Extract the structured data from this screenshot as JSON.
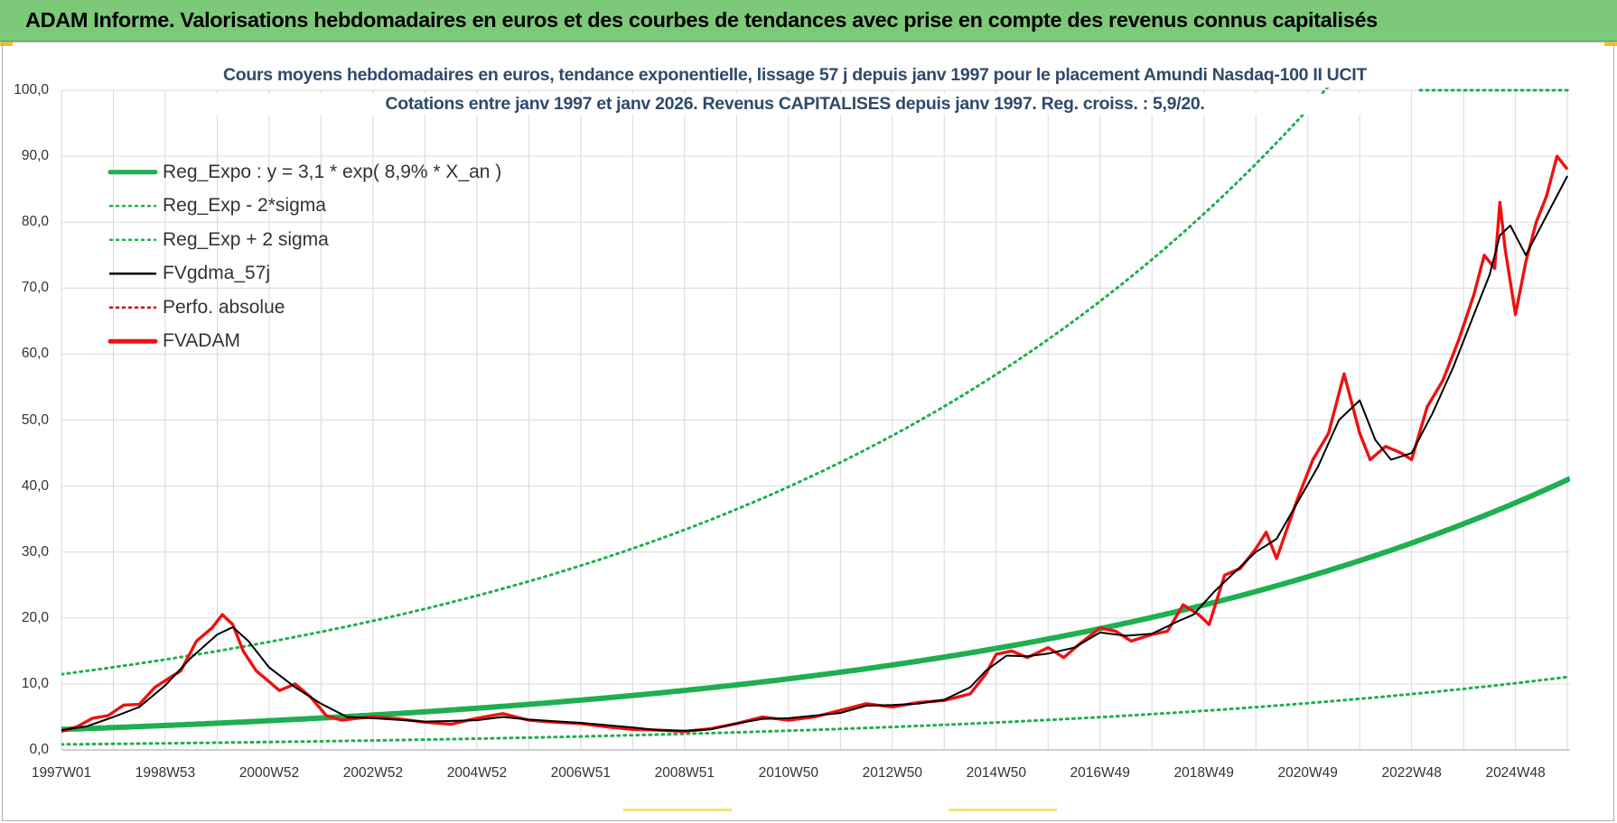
{
  "banner": {
    "title": "ADAM Informe. Valorisations hebdomadaires en euros et des courbes de tendances avec prise en compte des revenus connus capitalisés"
  },
  "colors": {
    "banner_bg": "#7dc97a",
    "reg_expo": "#1faf4f",
    "fvadam": "#ee1111",
    "fvgdma": "#000000",
    "perfo": "#cc0000",
    "grid": "#d9d9d9",
    "title_text": "#2f4a6a"
  },
  "chart_data": {
    "type": "line",
    "title_line1": "Cours moyens hebdomadaires en euros, tendance exponentielle, lissage 57 j depuis janv 1997  pour le placement Amundi Nasdaq-100 II UCIT",
    "title_line2": "Cotations entre janv 1997 et janv 2026. Revenus CAPITALISES depuis janv 1997. Reg. croiss. : 5,9/20.",
    "x_range": [
      1997.0,
      2026.05
    ],
    "ylim": [
      0,
      100
    ],
    "y_ticks": [
      "100,0",
      "90,0",
      "80,0",
      "70,0",
      "60,0",
      "50,0",
      "40,0",
      "30,0",
      "20,0",
      "10,0",
      "0,0"
    ],
    "y_tick_values": [
      100,
      90,
      80,
      70,
      60,
      50,
      40,
      30,
      20,
      10,
      0
    ],
    "x_ticks": [
      "1997W01",
      "1998W53",
      "2000W52",
      "2002W52",
      "2004W52",
      "2006W51",
      "2008W51",
      "2010W50",
      "2012W50",
      "2014W50",
      "2016W49",
      "2018W49",
      "2020W49",
      "2022W48",
      "2024W48"
    ],
    "x_tick_values": [
      1997.0,
      1999.0,
      2001.0,
      2003.0,
      2005.0,
      2007.0,
      2009.0,
      2011.0,
      2013.0,
      2015.0,
      2017.0,
      2019.0,
      2021.0,
      2023.0,
      2025.0
    ],
    "grid": true,
    "legend_position": "top-left",
    "legend": [
      {
        "label": "Reg_Expo : y = 3,1 * exp( 8,9% *  X_an )",
        "color": "#1faf4f",
        "style": "solid-thick"
      },
      {
        "label": "Reg_Exp - 2*sigma",
        "color": "#1faf4f",
        "style": "dotted"
      },
      {
        "label": "Reg_Exp + 2 sigma",
        "color": "#1faf4f",
        "style": "dotted"
      },
      {
        "label": "FVgdma_57j",
        "color": "#000000",
        "style": "solid"
      },
      {
        "label": "Perfo. absolue",
        "color": "#cc0000",
        "style": "dotted"
      },
      {
        "label": "FVADAM",
        "color": "#ee1111",
        "style": "solid-thick"
      }
    ],
    "regression": {
      "a": 3.1,
      "rate": 0.089,
      "start": 1997.0,
      "lower_factor": 0.27,
      "upper_factor": 3.7
    },
    "series": [
      {
        "name": "FVADAM",
        "x": [
          1997.0,
          1997.3,
          1997.6,
          1997.9,
          1998.2,
          1998.5,
          1998.8,
          1999.0,
          1999.3,
          1999.6,
          1999.9,
          2000.1,
          2000.3,
          2000.5,
          2000.75,
          2000.9,
          2001.2,
          2001.5,
          2001.8,
          2002.1,
          2002.4,
          2002.7,
          2003.0,
          2003.5,
          2004.0,
          2004.5,
          2005.0,
          2005.5,
          2006.0,
          2006.5,
          2007.0,
          2007.5,
          2008.0,
          2008.5,
          2009.0,
          2009.5,
          2010.0,
          2010.5,
          2011.0,
          2011.5,
          2012.0,
          2012.5,
          2013.0,
          2013.5,
          2014.0,
          2014.5,
          2014.8,
          2015.0,
          2015.3,
          2015.6,
          2016.0,
          2016.3,
          2016.6,
          2017.0,
          2017.3,
          2017.6,
          2018.0,
          2018.3,
          2018.6,
          2018.9,
          2019.1,
          2019.4,
          2019.7,
          2020.0,
          2020.2,
          2020.4,
          2020.8,
          2021.1,
          2021.4,
          2021.7,
          2022.0,
          2022.2,
          2022.5,
          2022.8,
          2023.0,
          2023.3,
          2023.6,
          2023.9,
          2024.2,
          2024.4,
          2024.6,
          2024.7,
          2024.8,
          2025.0,
          2025.2,
          2025.4,
          2025.6,
          2025.8,
          2026.0
        ],
        "values": [
          2.8,
          3.5,
          4.8,
          5.2,
          6.8,
          6.9,
          9.5,
          10.5,
          12.0,
          16.5,
          18.5,
          20.5,
          19.0,
          15.0,
          12.0,
          11.0,
          9.0,
          10.0,
          8.0,
          5.2,
          4.5,
          4.8,
          5.0,
          4.7,
          4.2,
          3.9,
          4.8,
          5.5,
          4.5,
          4.2,
          4.0,
          3.5,
          3.1,
          3.0,
          2.8,
          3.2,
          4.0,
          5.0,
          4.5,
          5.0,
          6.0,
          7.0,
          6.5,
          7.2,
          7.5,
          8.5,
          11.5,
          14.5,
          15.0,
          14.0,
          15.5,
          14.0,
          16.0,
          18.5,
          18.0,
          16.5,
          17.5,
          18.0,
          22.0,
          20.5,
          19.0,
          26.5,
          27.5,
          30.5,
          33.0,
          29.0,
          38.0,
          44.0,
          48.0,
          57.0,
          48.0,
          44.0,
          46.0,
          45.0,
          44.0,
          52.0,
          56.0,
          62.0,
          69.0,
          75.0,
          73.0,
          83.0,
          76.0,
          66.0,
          74.0,
          80.0,
          84.0,
          90.0,
          88.0
        ]
      },
      {
        "name": "FVgdma_57j",
        "x": [
          1997.0,
          1997.5,
          1998.0,
          1998.5,
          1999.0,
          1999.5,
          2000.0,
          2000.3,
          2000.6,
          2001.0,
          2001.5,
          2002.0,
          2002.5,
          2003.0,
          2004.0,
          2005.0,
          2005.5,
          2006.0,
          2007.0,
          2008.0,
          2008.5,
          2009.0,
          2009.5,
          2010.0,
          2010.5,
          2011.0,
          2012.0,
          2012.5,
          2013.0,
          2013.5,
          2014.0,
          2014.5,
          2014.8,
          2015.2,
          2015.6,
          2016.0,
          2016.5,
          2017.0,
          2017.5,
          2018.0,
          2018.5,
          2018.8,
          2019.2,
          2019.6,
          2020.0,
          2020.4,
          2020.8,
          2021.2,
          2021.6,
          2022.0,
          2022.3,
          2022.6,
          2023.0,
          2023.4,
          2023.8,
          2024.2,
          2024.5,
          2024.7,
          2024.9,
          2025.2,
          2025.6,
          2026.0
        ],
        "values": [
          3.0,
          3.6,
          5.0,
          6.5,
          9.8,
          14.0,
          17.5,
          18.6,
          16.5,
          12.5,
          9.5,
          7.0,
          5.0,
          4.8,
          4.3,
          4.5,
          5.0,
          4.6,
          4.1,
          3.4,
          3.0,
          2.9,
          3.1,
          4.0,
          4.7,
          4.8,
          5.6,
          6.7,
          6.8,
          7.0,
          7.6,
          9.5,
          12.0,
          14.3,
          14.2,
          14.6,
          15.5,
          17.8,
          17.3,
          17.6,
          19.5,
          20.5,
          24.0,
          27.0,
          30.0,
          32.0,
          37.5,
          43.0,
          50.0,
          53.0,
          47.0,
          44.0,
          45.0,
          51.0,
          58.0,
          66.0,
          72.0,
          78.0,
          79.5,
          75.0,
          81.0,
          87.0
        ]
      }
    ]
  }
}
